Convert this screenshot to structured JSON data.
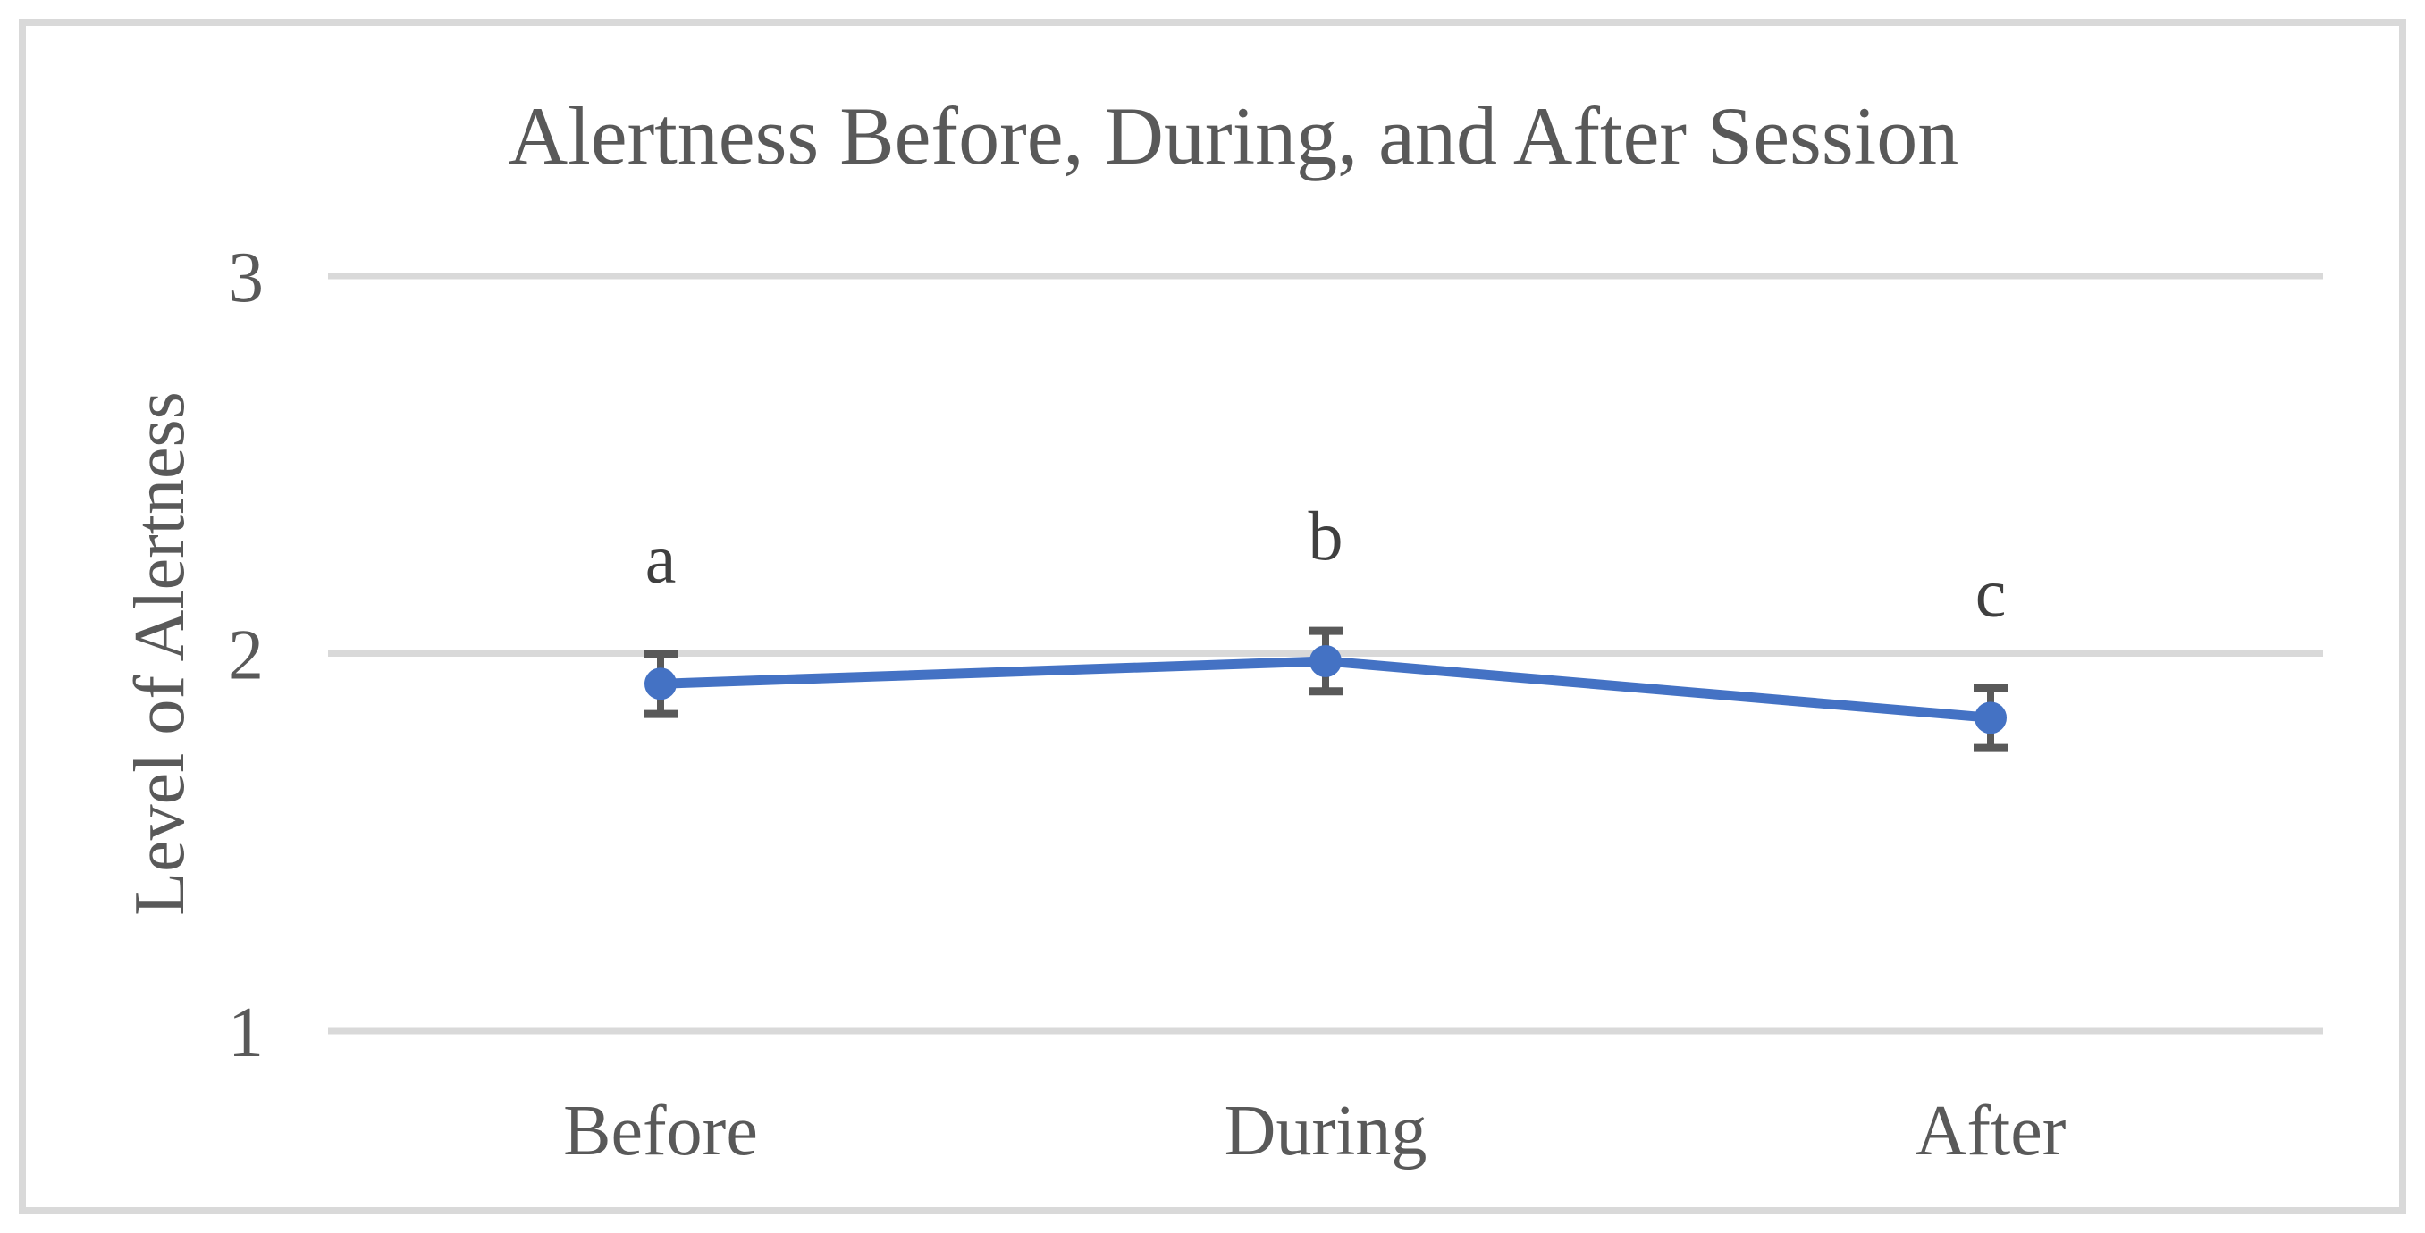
{
  "figure": {
    "title": "Alertness Before, During, and After Session"
  },
  "chart_data": {
    "type": "line",
    "title": "Alertness Before, During, and After Session",
    "xlabel": "",
    "ylabel": "Level of Alertness",
    "categories": [
      "Before",
      "During",
      "After"
    ],
    "series": [
      {
        "values": [
          1.92,
          1.98,
          1.83
        ],
        "error_bars": [
          0.08,
          0.08,
          0.08
        ],
        "point_labels": [
          "a",
          "b",
          "c"
        ]
      }
    ],
    "ylim": [
      1,
      3
    ],
    "yticks": [
      3,
      2,
      1
    ],
    "grid": "horizontal-only",
    "legend": "none",
    "marker": "circle",
    "colors": {
      "series": "#4472c4",
      "gridline": "#d9d9d9",
      "panel_border": "#d9d9d9",
      "axis_text": "#595959",
      "title_text": "#595959",
      "error_bar": "#595959",
      "point_label": "#3f3f3f",
      "background": "#ffffff"
    }
  }
}
